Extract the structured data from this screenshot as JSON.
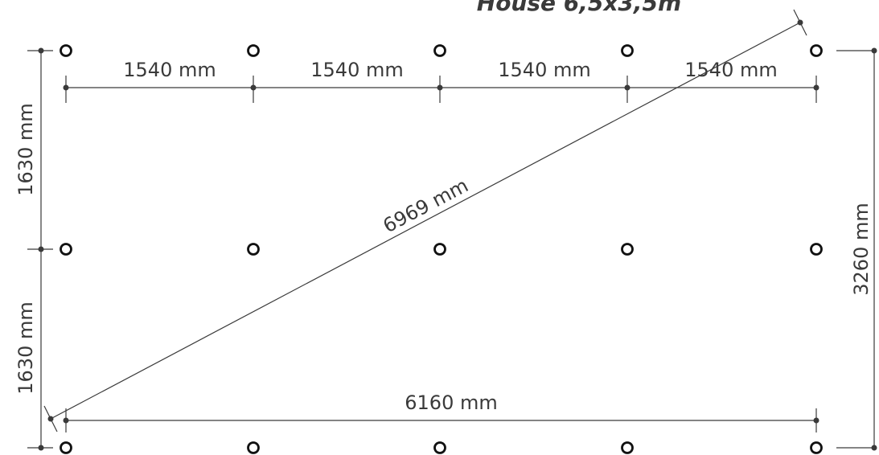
{
  "title": "House 6,5x3,5m",
  "dimensions": {
    "segment_top": [
      "1540 mm",
      "1540 mm",
      "1540 mm",
      "1540 mm"
    ],
    "total_width": "6160 mm",
    "left_upper": "1630 mm",
    "left_lower": "1630 mm",
    "total_height": "3260 mm",
    "diagonal": "6969 mm"
  },
  "colors": {
    "line": "#3a3a3a",
    "post": "#111111"
  }
}
